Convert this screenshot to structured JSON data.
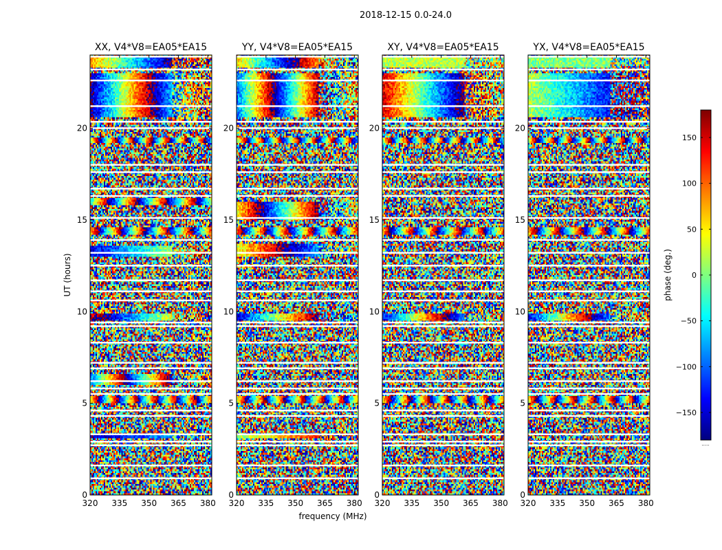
{
  "figure": {
    "suptitle": "2018-12-15 0.0-24.0",
    "xlabel": "frequency (MHz)",
    "ylabel": "UT (hours)",
    "colorbar_label": "phase (deg.)",
    "colorbar_note": "....."
  },
  "chart_data": {
    "type": "heatmap",
    "colormap": "jet",
    "clim": [
      -180,
      180
    ],
    "colorbar_ticks": [
      -150,
      -100,
      -50,
      0,
      50,
      100,
      150
    ],
    "xlim": [
      320,
      382
    ],
    "xticks": [
      320,
      335,
      350,
      365,
      380
    ],
    "ylim": [
      0,
      24
    ],
    "yticks": [
      0,
      5,
      10,
      15,
      20
    ],
    "panels": [
      {
        "title": "XX, V4*V8=EA05*EA15",
        "noise": 0.55,
        "bands": [
          {
            "y": [
              23.3,
              23.85
            ],
            "a": 80,
            "b": -3.0
          },
          {
            "y": [
              20.6,
              23.0
            ],
            "a": -170,
            "b": 5.5
          },
          {
            "y": [
              19.2,
              19.5
            ],
            "a": 0,
            "b": 20
          },
          {
            "y": [
              15.8,
              16.2
            ],
            "a": -40,
            "b": 12
          },
          {
            "y": [
              14.2,
              14.6
            ],
            "a": 60,
            "b": 15
          },
          {
            "y": [
              13.0,
              13.6
            ],
            "a": -150,
            "b": 2
          },
          {
            "y": [
              9.5,
              9.9
            ],
            "a": 150,
            "b": 3
          },
          {
            "y": [
              6.0,
              6.6
            ],
            "a": -100,
            "b": 8
          },
          {
            "y": [
              5.0,
              5.4
            ],
            "a": 30,
            "b": 18
          },
          {
            "y": [
              3.1,
              3.3
            ],
            "a": -160,
            "b": 1
          }
        ]
      },
      {
        "title": "YY, V4*V8=EA05*EA15",
        "noise": 0.55,
        "bands": [
          {
            "y": [
              23.3,
              23.85
            ],
            "a": 60,
            "b": -4.0
          },
          {
            "y": [
              20.6,
              23.0
            ],
            "a": -100,
            "b": 7.5
          },
          {
            "y": [
              19.2,
              19.5
            ],
            "a": -20,
            "b": 20
          },
          {
            "y": [
              15.0,
              16.0
            ],
            "a": 40,
            "b": 6
          },
          {
            "y": [
              14.2,
              14.6
            ],
            "a": 90,
            "b": 15
          },
          {
            "y": [
              13.0,
              13.7
            ],
            "a": 30,
            "b": 3
          },
          {
            "y": [
              9.5,
              9.9
            ],
            "a": -150,
            "b": 4
          },
          {
            "y": [
              5.0,
              5.4
            ],
            "a": 10,
            "b": 18
          },
          {
            "y": [
              3.1,
              3.3
            ],
            "a": 0,
            "b": 1.5
          }
        ]
      },
      {
        "title": "XY, V4*V8=EA05*EA15",
        "noise": 0.6,
        "bands": [
          {
            "y": [
              23.3,
              23.85
            ],
            "a": 20,
            "b": 0
          },
          {
            "y": [
              20.6,
              23.0
            ],
            "a": 150,
            "b": -4.0
          },
          {
            "y": [
              19.2,
              19.5
            ],
            "a": 0,
            "b": 20
          },
          {
            "y": [
              14.2,
              14.6
            ],
            "a": 60,
            "b": 15
          },
          {
            "y": [
              9.5,
              9.9
            ],
            "a": -140,
            "b": 5
          },
          {
            "y": [
              5.0,
              5.4
            ],
            "a": 30,
            "b": 18
          }
        ]
      },
      {
        "title": "YX, V4*V8=EA05*EA15",
        "noise": 0.6,
        "bands": [
          {
            "y": [
              23.3,
              23.85
            ],
            "a": 0,
            "b": 0
          },
          {
            "y": [
              20.6,
              23.0
            ],
            "a": 20,
            "b": -1.8
          },
          {
            "y": [
              19.2,
              19.5
            ],
            "a": 0,
            "b": 20
          },
          {
            "y": [
              14.2,
              14.6
            ],
            "a": 60,
            "b": 15
          },
          {
            "y": [
              9.5,
              9.9
            ],
            "a": -140,
            "b": 5
          },
          {
            "y": [
              5.0,
              5.4
            ],
            "a": 30,
            "b": 18
          }
        ]
      }
    ],
    "flagged_hours": [
      23.9,
      23.2,
      22.6,
      21.2,
      20.35,
      20.0,
      18.0,
      17.6,
      16.7,
      16.3,
      15.1,
      13.9,
      13.2,
      12.5,
      11.7,
      11.1,
      10.6,
      9.4,
      9.2,
      8.3,
      7.2,
      6.9,
      6.2,
      5.8,
      5.5,
      4.6,
      4.3,
      3.3,
      2.9,
      2.7,
      1.6,
      0.9
    ]
  }
}
